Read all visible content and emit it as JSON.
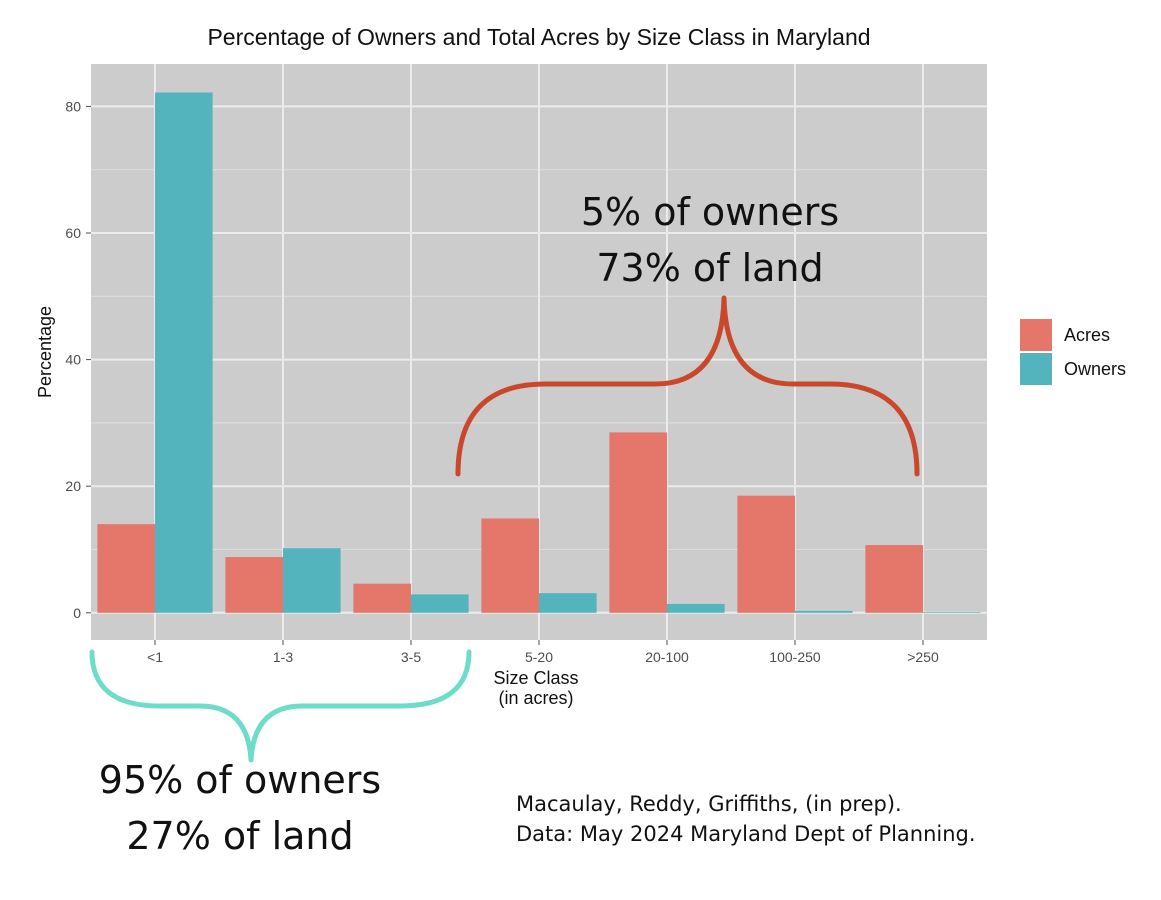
{
  "chart_data": {
    "type": "bar",
    "title": "Percentage of Owners and Total Acres by Size Class in Maryland",
    "xlabel_line1": "Size Class",
    "xlabel_line2": "(in acres)",
    "ylabel": "Percentage",
    "categories": [
      "<1",
      "1-3",
      "3-5",
      "5-20",
      "20-100",
      "100-250",
      ">250"
    ],
    "series": [
      {
        "name": "Acres",
        "color": "#e5766a",
        "values": [
          14.0,
          8.8,
          4.6,
          14.9,
          28.5,
          18.5,
          10.7
        ]
      },
      {
        "name": "Owners",
        "color": "#54b4be",
        "values": [
          82.2,
          10.2,
          2.9,
          3.1,
          1.4,
          0.3,
          0.1
        ]
      }
    ],
    "ylim": [
      -4.3,
      86.7
    ],
    "yticks": [
      0,
      20,
      40,
      60,
      80
    ],
    "grid": true,
    "legend_position": "right",
    "panel_color": "#cccccc",
    "grid_color": "#ebebeb"
  },
  "annotations": {
    "right_line1": "5% of owners",
    "right_line2": "73% of land",
    "right_brace_color": "#c9472b",
    "left_line1": "95% of owners",
    "left_line2": "27% of land",
    "left_brace_color": "#6dddc9"
  },
  "source": {
    "line1": "Macaulay, Reddy, Griffiths, (in prep).",
    "line2": "Data: May 2024 Maryland Dept of Planning."
  }
}
